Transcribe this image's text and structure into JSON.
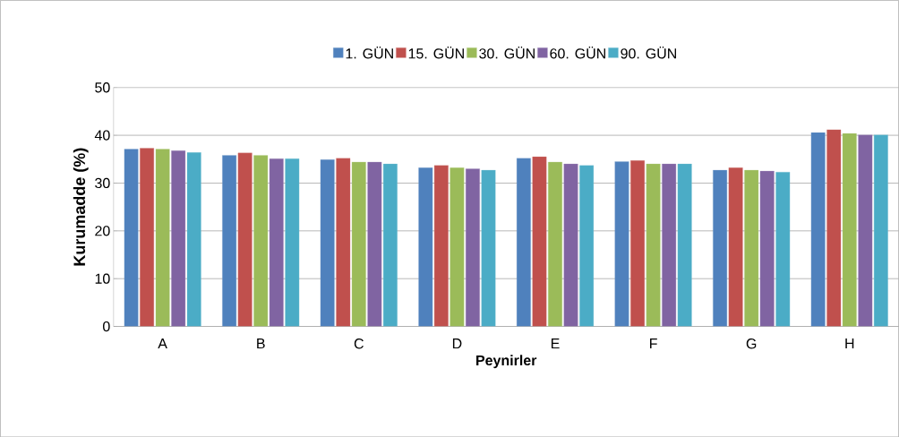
{
  "chart_data": {
    "type": "bar",
    "xlabel": "Peynirler",
    "ylabel": "Kurumadde (%)",
    "categories": [
      "A",
      "B",
      "C",
      "D",
      "E",
      "F",
      "G",
      "H"
    ],
    "series": [
      {
        "name": "1. GÜN",
        "color": "#4f81bd",
        "values": [
          37.1,
          35.8,
          34.9,
          33.2,
          35.2,
          34.5,
          32.7,
          40.6
        ]
      },
      {
        "name": "15. GÜN",
        "color": "#c0504d",
        "values": [
          37.3,
          36.3,
          35.2,
          33.7,
          35.5,
          34.7,
          33.2,
          41.2
        ]
      },
      {
        "name": "30. GÜN",
        "color": "#9bbb59",
        "values": [
          37.1,
          35.8,
          34.4,
          33.2,
          34.4,
          34.0,
          32.7,
          40.4
        ]
      },
      {
        "name": "60. GÜN",
        "color": "#8064a2",
        "values": [
          36.8,
          35.1,
          34.4,
          33.0,
          34.0,
          34.0,
          32.5,
          40.1
        ]
      },
      {
        "name": "90. GÜN",
        "color": "#4bacc6",
        "values": [
          36.4,
          35.1,
          34.0,
          32.7,
          33.7,
          34.0,
          32.3,
          40.1
        ]
      }
    ],
    "ylim": [
      0,
      50
    ],
    "yticks": [
      0,
      10,
      20,
      30,
      40,
      50
    ],
    "grid": "y",
    "legend": "top"
  }
}
